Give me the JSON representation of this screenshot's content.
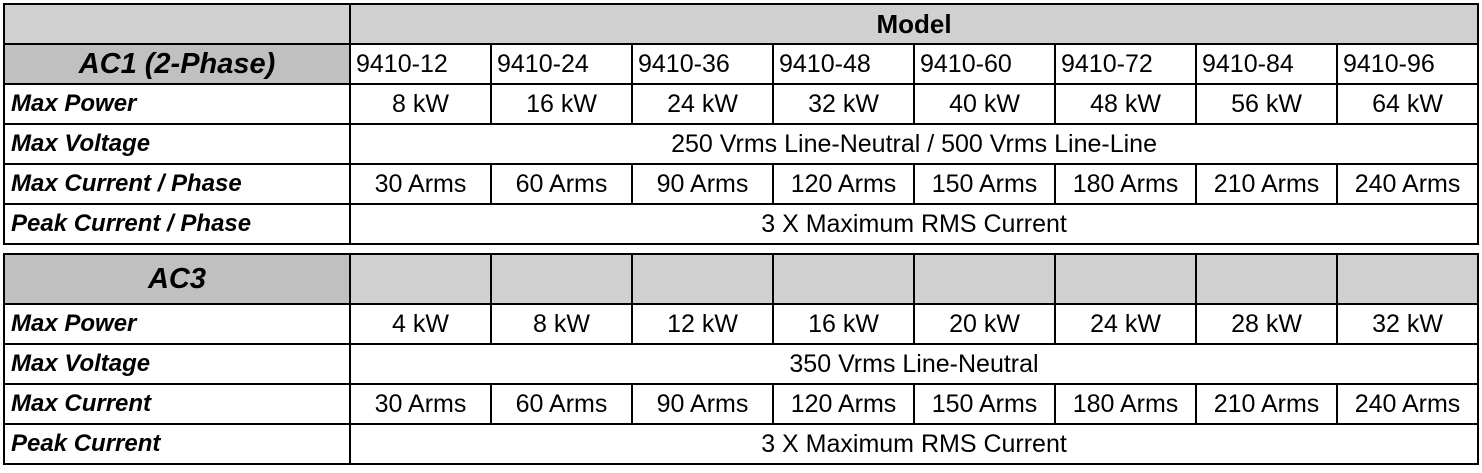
{
  "model_header": "Model",
  "models": [
    "9410-12",
    "9410-24",
    "9410-36",
    "9410-48",
    "9410-60",
    "9410-72",
    "9410-84",
    "9410-96"
  ],
  "ac1": {
    "title": "AC1 (2-Phase)",
    "max_power": {
      "label": "Max Power",
      "values": [
        "8 kW",
        "16 kW",
        "24 kW",
        "32 kW",
        "40 kW",
        "48 kW",
        "56 kW",
        "64 kW"
      ]
    },
    "max_voltage": {
      "label": "Max Voltage",
      "value": "250 Vrms Line-Neutral / 500 Vrms Line-Line"
    },
    "max_current": {
      "label": "Max Current / Phase",
      "values": [
        "30 Arms",
        "60 Arms",
        "90 Arms",
        "120 Arms",
        "150 Arms",
        "180 Arms",
        "210 Arms",
        "240 Arms"
      ]
    },
    "peak_current": {
      "label": "Peak Current / Phase",
      "value": "3 X Maximum RMS Current"
    }
  },
  "ac3": {
    "title": "AC3",
    "max_power": {
      "label": "Max Power",
      "values": [
        "4 kW",
        "8 kW",
        "12 kW",
        "16 kW",
        "20 kW",
        "24 kW",
        "28 kW",
        "32 kW"
      ]
    },
    "max_voltage": {
      "label": "Max Voltage",
      "value": "350 Vrms Line-Neutral"
    },
    "max_current": {
      "label": "Max Current",
      "values": [
        "30 Arms",
        "60 Arms",
        "90 Arms",
        "120 Arms",
        "150 Arms",
        "180 Arms",
        "210 Arms",
        "240 Arms"
      ]
    },
    "peak_current": {
      "label": "Peak Current",
      "value": "3 X Maximum RMS Current"
    }
  }
}
